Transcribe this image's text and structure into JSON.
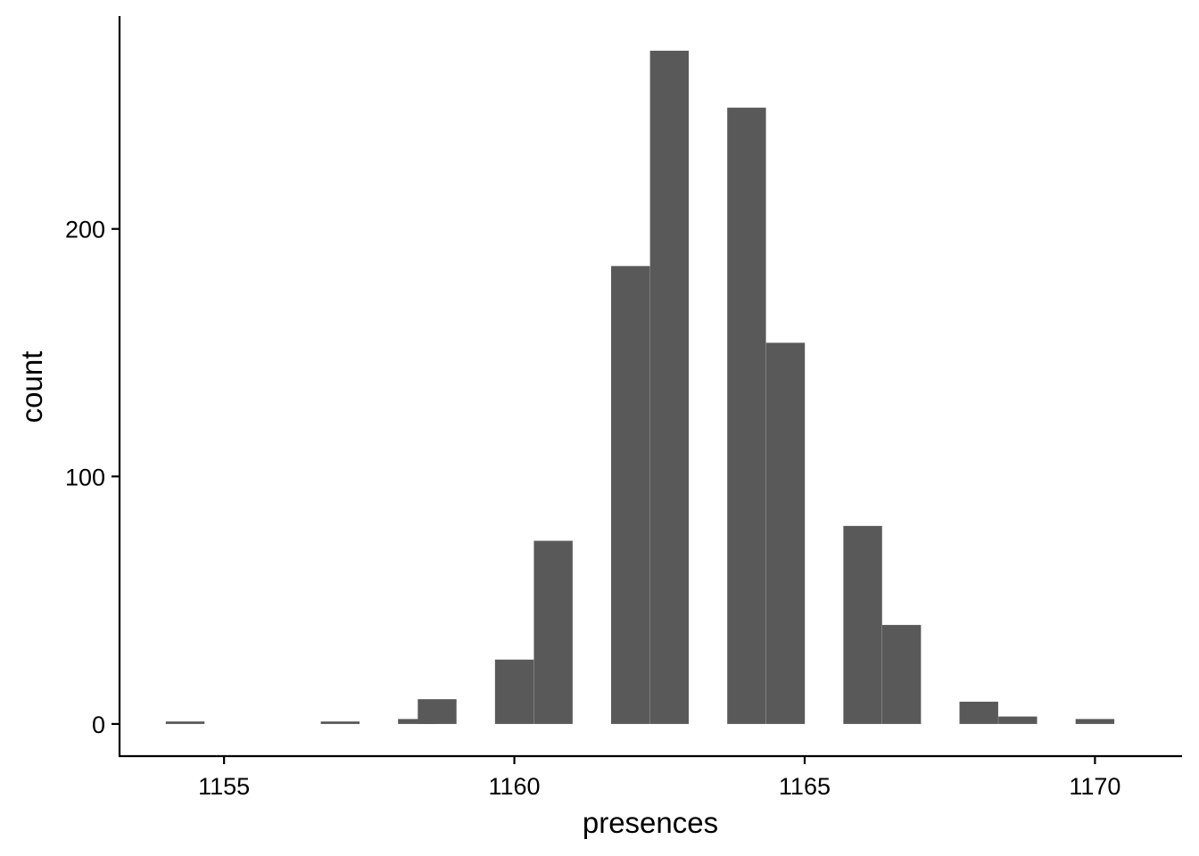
{
  "chart_data": {
    "type": "bar",
    "subtype": "histogram",
    "title": "",
    "xlabel": "presences",
    "ylabel": "count",
    "bin_width": 0.6667,
    "bins": [
      {
        "x": 1154.33,
        "count": 1
      },
      {
        "x": 1157.0,
        "count": 1
      },
      {
        "x": 1158.33,
        "count": 2
      },
      {
        "x": 1158.67,
        "count": 10
      },
      {
        "x": 1160.0,
        "count": 26
      },
      {
        "x": 1160.67,
        "count": 74
      },
      {
        "x": 1162.0,
        "count": 185
      },
      {
        "x": 1162.67,
        "count": 272
      },
      {
        "x": 1164.0,
        "count": 249
      },
      {
        "x": 1164.67,
        "count": 154
      },
      {
        "x": 1166.0,
        "count": 80
      },
      {
        "x": 1166.67,
        "count": 40
      },
      {
        "x": 1168.0,
        "count": 9
      },
      {
        "x": 1168.67,
        "count": 3
      },
      {
        "x": 1170.0,
        "count": 2
      }
    ],
    "xlim": [
      1153.2,
      1171.5
    ],
    "ylim": [
      -13,
      286
    ],
    "x_ticks": [
      1155,
      1160,
      1165,
      1170
    ],
    "x_tick_labels": [
      "1155",
      "1160",
      "1165",
      "1170"
    ],
    "y_ticks": [
      0,
      100,
      200
    ],
    "y_tick_labels": [
      "0",
      "100",
      "200"
    ],
    "bar_color": "#595959",
    "axis_color": "#000000",
    "grid": false,
    "legend": "none"
  }
}
